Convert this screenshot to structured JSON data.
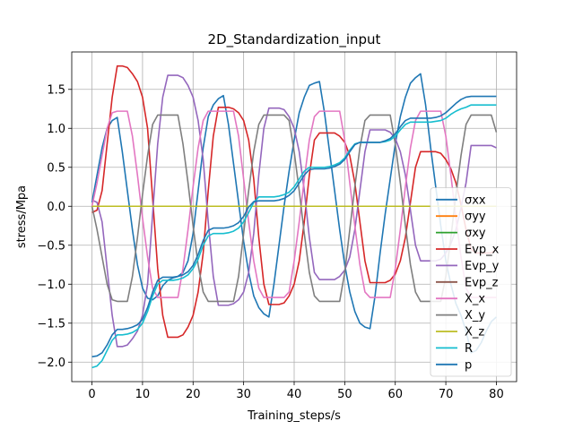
{
  "chart_data": {
    "type": "line",
    "title": "2D_Standardization_input",
    "xlabel": "Training_steps/s",
    "ylabel": "stress/Mpa",
    "xlim": [
      -4,
      84
    ],
    "ylim": [
      -2.25,
      1.98
    ],
    "xticks": [
      0,
      10,
      20,
      30,
      40,
      50,
      60,
      70,
      80
    ],
    "yticks": [
      -2.0,
      -1.5,
      -1.0,
      -0.5,
      0.0,
      0.5,
      1.0,
      1.5
    ],
    "xtick_labels": [
      "0",
      "10",
      "20",
      "30",
      "40",
      "50",
      "60",
      "70",
      "80"
    ],
    "ytick_labels": [
      "−2.0",
      "−1.5",
      "−1.0",
      "−0.5",
      "0.0",
      "0.5",
      "1.0",
      "1.5"
    ],
    "grid": true,
    "legend_position": "lower-right",
    "series": [
      {
        "name": "σxx",
        "color": "#1f77b4",
        "x": [
          0,
          1,
          2,
          3,
          4,
          5,
          6,
          7,
          8,
          9,
          10,
          11,
          12,
          13,
          14,
          15,
          16,
          17,
          18,
          19,
          20,
          21,
          22,
          23,
          24,
          25,
          26,
          27,
          28,
          29,
          30,
          31,
          32,
          33,
          34,
          35,
          36,
          37,
          38,
          39,
          40,
          41,
          42,
          43,
          44,
          45,
          46,
          47,
          48,
          49,
          50,
          51,
          52,
          53,
          54,
          55,
          56,
          57,
          58,
          59,
          60,
          61,
          62,
          63,
          64,
          65,
          66,
          67,
          68,
          69,
          70,
          71,
          72,
          73,
          74,
          75,
          76,
          77,
          78,
          79,
          80
        ],
        "y": [
          0.05,
          0.4,
          0.75,
          1.0,
          1.1,
          1.14,
          0.7,
          0.2,
          -0.3,
          -0.75,
          -1.05,
          -1.18,
          -1.2,
          -1.15,
          -1.02,
          -0.95,
          -0.92,
          -0.9,
          -0.85,
          -0.7,
          -0.35,
          0.2,
          0.75,
          1.15,
          1.3,
          1.38,
          1.42,
          1.05,
          0.55,
          0.05,
          -0.45,
          -0.85,
          -1.15,
          -1.3,
          -1.38,
          -1.42,
          -1.0,
          -0.5,
          0.0,
          0.45,
          0.85,
          1.2,
          1.4,
          1.55,
          1.58,
          1.6,
          1.2,
          0.7,
          0.2,
          -0.3,
          -0.75,
          -1.1,
          -1.35,
          -1.5,
          -1.55,
          -1.57,
          -1.15,
          -0.6,
          -0.1,
          0.35,
          0.8,
          1.15,
          1.4,
          1.58,
          1.65,
          1.7,
          1.3,
          0.75,
          0.25,
          -0.25,
          -0.7,
          -1.0,
          -1.25,
          -1.4,
          -1.6,
          -1.88,
          -1.85,
          -1.75,
          -1.6,
          -1.48,
          -1.42
        ]
      },
      {
        "name": "σyy",
        "color": "#ff7f0e",
        "x": [
          0,
          80
        ],
        "y": [
          0.0,
          0.0
        ]
      },
      {
        "name": "σxy",
        "color": "#2ca02c",
        "x": [
          0,
          80
        ],
        "y": [
          0.0,
          0.0
        ]
      },
      {
        "name": "Evp_x",
        "color": "#d62728",
        "x": [
          0,
          1,
          2,
          3,
          4,
          5,
          6,
          7,
          8,
          9,
          10,
          11,
          12,
          13,
          14,
          15,
          16,
          17,
          18,
          19,
          20,
          21,
          22,
          23,
          24,
          25,
          26,
          27,
          28,
          29,
          30,
          31,
          32,
          33,
          34,
          35,
          36,
          37,
          38,
          39,
          40,
          41,
          42,
          43,
          44,
          45,
          46,
          47,
          48,
          49,
          50,
          51,
          52,
          53,
          54,
          55,
          56,
          57,
          58,
          59,
          60,
          61,
          62,
          63,
          64,
          65,
          66,
          67,
          68,
          69,
          70,
          71,
          72,
          73,
          74,
          75,
          76,
          77,
          78,
          79,
          80
        ],
        "y": [
          -0.08,
          -0.05,
          0.2,
          0.8,
          1.4,
          1.8,
          1.8,
          1.78,
          1.7,
          1.6,
          1.4,
          1.0,
          0.1,
          -0.8,
          -1.4,
          -1.68,
          -1.68,
          -1.68,
          -1.65,
          -1.55,
          -1.4,
          -1.1,
          -0.6,
          0.2,
          0.9,
          1.27,
          1.27,
          1.27,
          1.25,
          1.2,
          1.1,
          0.85,
          0.35,
          -0.4,
          -1.0,
          -1.26,
          -1.26,
          -1.26,
          -1.24,
          -1.15,
          -1.0,
          -0.7,
          -0.2,
          0.4,
          0.85,
          0.94,
          0.94,
          0.94,
          0.94,
          0.9,
          0.82,
          0.65,
          0.3,
          -0.2,
          -0.7,
          -0.98,
          -0.98,
          -0.98,
          -0.98,
          -0.95,
          -0.87,
          -0.7,
          -0.4,
          0.05,
          0.5,
          0.7,
          0.7,
          0.7,
          0.7,
          0.68,
          0.6,
          0.48,
          0.3,
          0.02,
          -0.3,
          -0.55,
          -0.6,
          -0.6,
          -0.6,
          -0.6,
          -0.55
        ]
      },
      {
        "name": "Evp_y",
        "color": "#9467bd",
        "x": [
          0,
          1,
          2,
          3,
          4,
          5,
          6,
          7,
          8,
          9,
          10,
          11,
          12,
          13,
          14,
          15,
          16,
          17,
          18,
          19,
          20,
          21,
          22,
          23,
          24,
          25,
          26,
          27,
          28,
          29,
          30,
          31,
          32,
          33,
          34,
          35,
          36,
          37,
          38,
          39,
          40,
          41,
          42,
          43,
          44,
          45,
          46,
          47,
          48,
          49,
          50,
          51,
          52,
          53,
          54,
          55,
          56,
          57,
          58,
          59,
          60,
          61,
          62,
          63,
          64,
          65,
          66,
          67,
          68,
          69,
          70,
          71,
          72,
          73,
          74,
          75,
          76,
          77,
          78,
          79,
          80
        ],
        "y": [
          0.08,
          0.05,
          -0.2,
          -0.8,
          -1.4,
          -1.8,
          -1.8,
          -1.78,
          -1.7,
          -1.6,
          -1.4,
          -1.0,
          -0.1,
          0.8,
          1.4,
          1.68,
          1.68,
          1.68,
          1.65,
          1.55,
          1.4,
          1.1,
          0.6,
          -0.2,
          -0.9,
          -1.27,
          -1.27,
          -1.27,
          -1.25,
          -1.2,
          -1.1,
          -0.85,
          -0.35,
          0.4,
          1.0,
          1.26,
          1.26,
          1.26,
          1.24,
          1.15,
          1.0,
          0.7,
          0.2,
          -0.4,
          -0.85,
          -0.94,
          -0.94,
          -0.94,
          -0.94,
          -0.9,
          -0.82,
          -0.65,
          -0.3,
          0.2,
          0.7,
          0.98,
          0.98,
          0.98,
          0.98,
          0.95,
          0.87,
          0.7,
          0.4,
          -0.05,
          -0.5,
          -0.7,
          -0.7,
          -0.7,
          -0.7,
          -0.68,
          -0.6,
          -0.48,
          -0.3,
          -0.02,
          0.3,
          0.78,
          0.78,
          0.78,
          0.78,
          0.78,
          0.75
        ]
      },
      {
        "name": "Evp_z",
        "color": "#8c564b",
        "x": [
          0,
          80
        ],
        "y": [
          0.0,
          0.0
        ]
      },
      {
        "name": "X_x",
        "color": "#e377c2",
        "x": [
          0,
          1,
          2,
          3,
          4,
          5,
          6,
          7,
          8,
          9,
          10,
          11,
          12,
          13,
          14,
          15,
          16,
          17,
          18,
          19,
          20,
          21,
          22,
          23,
          24,
          25,
          26,
          27,
          28,
          29,
          30,
          31,
          32,
          33,
          34,
          35,
          36,
          37,
          38,
          39,
          40,
          41,
          42,
          43,
          44,
          45,
          46,
          47,
          48,
          49,
          50,
          51,
          52,
          53,
          54,
          55,
          56,
          57,
          58,
          59,
          60,
          61,
          62,
          63,
          64,
          65,
          66,
          67,
          68,
          69,
          70,
          71,
          72,
          73,
          74,
          75,
          76,
          77,
          78,
          79,
          80
        ],
        "y": [
          0.0,
          0.3,
          0.65,
          1.0,
          1.2,
          1.22,
          1.22,
          1.22,
          0.9,
          0.4,
          -0.15,
          -0.65,
          -1.05,
          -1.17,
          -1.17,
          -1.17,
          -1.17,
          -1.17,
          -0.8,
          -0.3,
          0.25,
          0.75,
          1.1,
          1.22,
          1.22,
          1.22,
          1.22,
          1.22,
          1.22,
          0.9,
          0.35,
          -0.2,
          -0.7,
          -1.05,
          -1.17,
          -1.17,
          -1.17,
          -1.17,
          -1.17,
          -1.1,
          -0.7,
          -0.2,
          0.35,
          0.85,
          1.15,
          1.22,
          1.22,
          1.22,
          1.22,
          1.22,
          0.85,
          0.3,
          -0.25,
          -0.75,
          -1.1,
          -1.17,
          -1.17,
          -1.17,
          -1.17,
          -1.17,
          -0.8,
          -0.3,
          0.25,
          0.75,
          1.1,
          1.22,
          1.22,
          1.22,
          1.22,
          1.22,
          0.9,
          0.4,
          -0.15,
          -0.65,
          -1.05,
          -1.17,
          -1.17,
          -1.17,
          -1.17,
          -1.17,
          -1.17
        ]
      },
      {
        "name": "X_y",
        "color": "#7f7f7f",
        "x": [
          0,
          1,
          2,
          3,
          4,
          5,
          6,
          7,
          8,
          9,
          10,
          11,
          12,
          13,
          14,
          15,
          16,
          17,
          18,
          19,
          20,
          21,
          22,
          23,
          24,
          25,
          26,
          27,
          28,
          29,
          30,
          31,
          32,
          33,
          34,
          35,
          36,
          37,
          38,
          39,
          40,
          41,
          42,
          43,
          44,
          45,
          46,
          47,
          48,
          49,
          50,
          51,
          52,
          53,
          54,
          55,
          56,
          57,
          58,
          59,
          60,
          61,
          62,
          63,
          64,
          65,
          66,
          67,
          68,
          69,
          70,
          71,
          72,
          73,
          74,
          75,
          76,
          77,
          78,
          79,
          80
        ],
        "y": [
          0.0,
          -0.3,
          -0.65,
          -1.0,
          -1.2,
          -1.22,
          -1.22,
          -1.22,
          -0.9,
          -0.4,
          0.15,
          0.65,
          1.05,
          1.17,
          1.17,
          1.17,
          1.17,
          1.17,
          0.8,
          0.3,
          -0.25,
          -0.75,
          -1.1,
          -1.22,
          -1.22,
          -1.22,
          -1.22,
          -1.22,
          -1.22,
          -0.9,
          -0.35,
          0.2,
          0.7,
          1.05,
          1.17,
          1.17,
          1.17,
          1.17,
          1.17,
          1.1,
          0.7,
          0.2,
          -0.35,
          -0.85,
          -1.15,
          -1.22,
          -1.22,
          -1.22,
          -1.22,
          -1.22,
          -0.85,
          -0.3,
          0.25,
          0.75,
          1.1,
          1.17,
          1.17,
          1.17,
          1.17,
          1.17,
          0.8,
          0.3,
          -0.25,
          -0.75,
          -1.1,
          -1.22,
          -1.22,
          -1.22,
          -1.22,
          -1.22,
          -0.9,
          -0.4,
          0.15,
          0.65,
          1.05,
          1.17,
          1.17,
          1.17,
          1.17,
          1.17,
          0.95
        ]
      },
      {
        "name": "X_z",
        "color": "#bcbd22",
        "x": [
          0,
          80
        ],
        "y": [
          0.0,
          0.0
        ]
      },
      {
        "name": "R",
        "color": "#17becf",
        "x": [
          0,
          1,
          2,
          3,
          4,
          5,
          6,
          7,
          8,
          9,
          10,
          11,
          12,
          13,
          14,
          15,
          16,
          17,
          18,
          19,
          20,
          21,
          22,
          23,
          24,
          25,
          26,
          27,
          28,
          29,
          30,
          31,
          32,
          33,
          34,
          35,
          36,
          37,
          38,
          39,
          40,
          41,
          42,
          43,
          44,
          45,
          46,
          47,
          48,
          49,
          50,
          51,
          52,
          53,
          54,
          55,
          56,
          57,
          58,
          59,
          60,
          61,
          62,
          63,
          64,
          65,
          66,
          67,
          68,
          69,
          70,
          71,
          72,
          73,
          74,
          75,
          76,
          77,
          78,
          79,
          80
        ],
        "y": [
          -2.07,
          -2.05,
          -1.98,
          -1.85,
          -1.72,
          -1.65,
          -1.65,
          -1.64,
          -1.62,
          -1.58,
          -1.5,
          -1.35,
          -1.15,
          -1.0,
          -0.95,
          -0.95,
          -0.95,
          -0.94,
          -0.92,
          -0.88,
          -0.8,
          -0.68,
          -0.5,
          -0.38,
          -0.35,
          -0.35,
          -0.35,
          -0.34,
          -0.32,
          -0.28,
          -0.2,
          -0.08,
          0.05,
          0.12,
          0.12,
          0.12,
          0.12,
          0.13,
          0.15,
          0.18,
          0.25,
          0.35,
          0.45,
          0.5,
          0.5,
          0.5,
          0.5,
          0.51,
          0.53,
          0.56,
          0.62,
          0.72,
          0.8,
          0.82,
          0.82,
          0.82,
          0.82,
          0.82,
          0.83,
          0.85,
          0.9,
          0.98,
          1.05,
          1.08,
          1.08,
          1.08,
          1.08,
          1.08,
          1.09,
          1.1,
          1.13,
          1.18,
          1.22,
          1.25,
          1.27,
          1.3,
          1.3,
          1.3,
          1.3,
          1.3,
          1.3
        ]
      },
      {
        "name": "p",
        "color": "#1f77b4",
        "x": [
          0,
          1,
          2,
          3,
          4,
          5,
          6,
          7,
          8,
          9,
          10,
          11,
          12,
          13,
          14,
          15,
          16,
          17,
          18,
          19,
          20,
          21,
          22,
          23,
          24,
          25,
          26,
          27,
          28,
          29,
          30,
          31,
          32,
          33,
          34,
          35,
          36,
          37,
          38,
          39,
          40,
          41,
          42,
          43,
          44,
          45,
          46,
          47,
          48,
          49,
          50,
          51,
          52,
          53,
          54,
          55,
          56,
          57,
          58,
          59,
          60,
          61,
          62,
          63,
          64,
          65,
          66,
          67,
          68,
          69,
          70,
          71,
          72,
          73,
          74,
          75,
          76,
          77,
          78,
          79,
          80
        ],
        "y": [
          -1.93,
          -1.92,
          -1.88,
          -1.78,
          -1.65,
          -1.58,
          -1.58,
          -1.57,
          -1.55,
          -1.52,
          -1.45,
          -1.3,
          -1.1,
          -0.95,
          -0.91,
          -0.91,
          -0.91,
          -0.9,
          -0.88,
          -0.84,
          -0.76,
          -0.62,
          -0.44,
          -0.31,
          -0.28,
          -0.28,
          -0.28,
          -0.27,
          -0.25,
          -0.21,
          -0.13,
          -0.01,
          0.06,
          0.07,
          0.07,
          0.07,
          0.07,
          0.08,
          0.1,
          0.14,
          0.2,
          0.3,
          0.4,
          0.47,
          0.48,
          0.48,
          0.48,
          0.49,
          0.51,
          0.54,
          0.6,
          0.7,
          0.79,
          0.82,
          0.82,
          0.82,
          0.82,
          0.82,
          0.84,
          0.87,
          0.93,
          1.02,
          1.1,
          1.13,
          1.13,
          1.13,
          1.13,
          1.13,
          1.14,
          1.16,
          1.2,
          1.26,
          1.32,
          1.37,
          1.4,
          1.41,
          1.41,
          1.41,
          1.41,
          1.41,
          1.41
        ]
      }
    ]
  }
}
